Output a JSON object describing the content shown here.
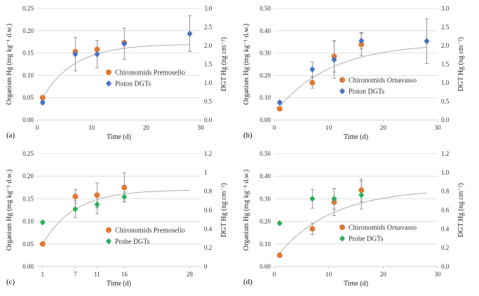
{
  "colors": {
    "chironomid": "#E07A35",
    "piston": "#4472C4",
    "probe": "#2EAD5B"
  },
  "chart_data": [
    {
      "type": "scatter",
      "panel_label": "(a)",
      "xlabel": "Time (d)",
      "ylabel_left": "Organism Hg (mg kg⁻¹ d.w.)",
      "ylabel_right": "DGT Hg (ng cm⁻²)",
      "xlim": [
        0,
        30
      ],
      "xticks": [
        "0",
        "10",
        "20",
        "30"
      ],
      "xtick_values": [
        0,
        10,
        20,
        30
      ],
      "ylim_left": [
        0,
        0.25
      ],
      "yticks_left": [
        "0.00",
        "0.05",
        "0.10",
        "0.15",
        "0.20",
        "0.25"
      ],
      "ylim_right": [
        0,
        3.0
      ],
      "yticks_right": [
        "0.0",
        "0.5",
        "1.0",
        "1.5",
        "2.0",
        "2.5",
        "3.0"
      ],
      "fit": {
        "a": 0.17,
        "c": 0.05,
        "k": 0.17,
        "x_start": 1,
        "x_end": 28
      },
      "series": [
        {
          "name": "Chironomids Premosello",
          "marker": "circle",
          "color_key": "chironomid",
          "axis": "left",
          "x": [
            1,
            7,
            11,
            16
          ],
          "y": [
            0.05,
            0.153,
            0.158,
            0.173
          ],
          "err": [
            0,
            0,
            0,
            0
          ]
        },
        {
          "name": "Piston DGTs",
          "marker": "diamond",
          "color_key": "piston",
          "axis": "right",
          "x": [
            1,
            7,
            11,
            16,
            28
          ],
          "y": [
            0.47,
            1.77,
            1.77,
            2.05,
            2.32
          ],
          "err": [
            0.05,
            0.45,
            0.37,
            0.42,
            0.48
          ]
        }
      ]
    },
    {
      "type": "scatter",
      "panel_label": "(b)",
      "xlabel": "Time (d)",
      "ylabel_left": "Organism Hg (mg kg⁻¹ d.w.)",
      "ylabel_right": "DGT Hg (ng cm⁻²)",
      "xlim": [
        0,
        30
      ],
      "xticks": [
        "0",
        "10",
        "20",
        "30"
      ],
      "xtick_values": [
        0,
        10,
        20,
        30
      ],
      "ylim_left": [
        0,
        0.5
      ],
      "yticks_left": [
        "0.00",
        "0.10",
        "0.20",
        "0.30",
        "0.40",
        "0.50"
      ],
      "ylim_right": [
        0,
        3.0
      ],
      "yticks_right": [
        "0.0",
        "0.5",
        "1.0",
        "1.5",
        "2.0",
        "2.5",
        "3.0"
      ],
      "fit": {
        "a": 0.345,
        "c": 0.06,
        "k": 0.1,
        "x_start": 1,
        "x_end": 28
      },
      "series": [
        {
          "name": "Chironomids Ornavasso",
          "marker": "circle",
          "color_key": "chironomid",
          "axis": "left",
          "x": [
            1,
            7,
            11,
            16
          ],
          "y": [
            0.05,
            0.167,
            0.285,
            0.338
          ],
          "err": [
            0,
            0.025,
            0.07,
            0.05
          ]
        },
        {
          "name": "Piston DGTs",
          "marker": "diamond",
          "color_key": "piston",
          "axis": "right",
          "x": [
            1,
            7,
            11,
            16,
            28
          ],
          "y": [
            0.47,
            1.36,
            1.62,
            2.13,
            2.12
          ],
          "err": [
            0.05,
            0.2,
            0.5,
            0.22,
            0.6
          ]
        }
      ]
    },
    {
      "type": "scatter",
      "panel_label": "(c)",
      "xlabel": "Time (d)",
      "ylabel_left": "Organism Hg (mg kg⁻¹ d.w.)",
      "ylabel_right": "DGT Hg (ng cm⁻²)",
      "xlim": [
        0,
        30
      ],
      "xticks": [
        "1",
        "7",
        "11",
        "16",
        "28"
      ],
      "xtick_values": [
        1,
        7,
        11,
        16,
        28
      ],
      "ylim_left": [
        0,
        0.25
      ],
      "yticks_left": [
        "0.00",
        "0.05",
        "0.10",
        "0.15",
        "0.20",
        "0.25"
      ],
      "ylim_right": [
        0,
        1.2
      ],
      "yticks_right": [
        "0",
        "0.2",
        "0.4",
        "0.6",
        "0.8",
        "1",
        "1.2"
      ],
      "fit": {
        "a": 0.17,
        "c": 0.05,
        "k": 0.17,
        "x_start": 1,
        "x_end": 28
      },
      "series": [
        {
          "name": "Chironomids Premosello",
          "marker": "circle",
          "color_key": "chironomid",
          "axis": "left",
          "x": [
            1,
            7,
            11,
            16
          ],
          "y": [
            0.05,
            0.155,
            0.158,
            0.175
          ],
          "err": [
            0,
            0.015,
            0.027,
            0.032
          ]
        },
        {
          "name": "Probe DGTs",
          "marker": "diamond",
          "color_key": "probe",
          "axis": "right",
          "x": [
            1,
            7,
            11,
            16
          ],
          "y": [
            0.47,
            0.61,
            0.66,
            0.74
          ],
          "err": [
            0,
            0.09,
            0.1,
            0.05
          ]
        }
      ]
    },
    {
      "type": "scatter",
      "panel_label": "(d)",
      "xlabel": "Time (d)",
      "ylabel_left": "Organism Hg (mg kg⁻¹ d.w.)",
      "ylabel_right": "DGT Hg (ng cm⁻²)",
      "xlim": [
        0,
        30
      ],
      "xticks": [
        "0",
        "10",
        "20",
        "30"
      ],
      "xtick_values": [
        0,
        10,
        20,
        30
      ],
      "ylim_left": [
        0,
        0.5
      ],
      "yticks_left": [
        "0.00",
        "0.10",
        "0.20",
        "0.30",
        "0.40",
        "0.50"
      ],
      "ylim_right": [
        0,
        1.2
      ],
      "yticks_right": [
        "0.0",
        "0.2",
        "0.4",
        "0.6",
        "0.8",
        "1.0",
        "1.2"
      ],
      "fit": {
        "a": 0.345,
        "c": 0.06,
        "k": 0.1,
        "x_start": 1,
        "x_end": 28
      },
      "series": [
        {
          "name": "Chironomids Ornavasso",
          "marker": "circle",
          "color_key": "chironomid",
          "axis": "left",
          "x": [
            1,
            7,
            11,
            16
          ],
          "y": [
            0.05,
            0.167,
            0.285,
            0.338
          ],
          "err": [
            0,
            0.025,
            0.06,
            0.05
          ]
        },
        {
          "name": "Probe DGTs",
          "marker": "diamond",
          "color_key": "probe",
          "axis": "right",
          "x": [
            1,
            7,
            11,
            16
          ],
          "y": [
            0.46,
            0.72,
            0.72,
            0.76
          ],
          "err": [
            0,
            0.1,
            0.11,
            0.15
          ]
        }
      ]
    }
  ]
}
